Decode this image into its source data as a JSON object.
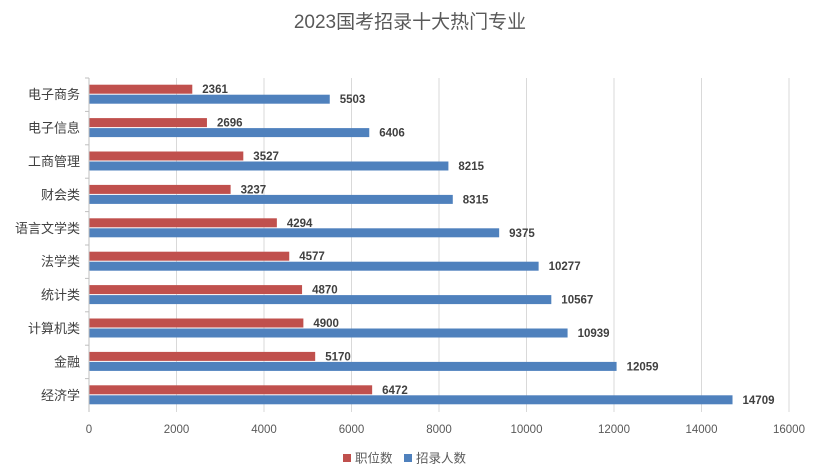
{
  "chart_data": {
    "type": "bar",
    "orientation": "horizontal",
    "title": "2023国考招录十大热门专业",
    "categories": [
      "电子商务",
      "电子信息",
      "工商管理",
      "财会类",
      "语言文学类",
      "法学类",
      "统计类",
      "计算机类",
      "金融",
      "经济学"
    ],
    "series": [
      {
        "name": "职位数",
        "color": "#c0504d",
        "values": [
          2361,
          2696,
          3527,
          3237,
          4294,
          4577,
          4870,
          4900,
          5170,
          6472
        ]
      },
      {
        "name": "招录人数",
        "color": "#4f81bd",
        "values": [
          5503,
          6406,
          8215,
          8315,
          9375,
          10277,
          10567,
          10939,
          12059,
          14709
        ]
      }
    ],
    "xlim": [
      0,
      16000
    ],
    "xticks": [
      0,
      2000,
      4000,
      6000,
      8000,
      10000,
      12000,
      14000,
      16000
    ],
    "grid": true,
    "legend_position": "bottom",
    "data_labels": true
  }
}
